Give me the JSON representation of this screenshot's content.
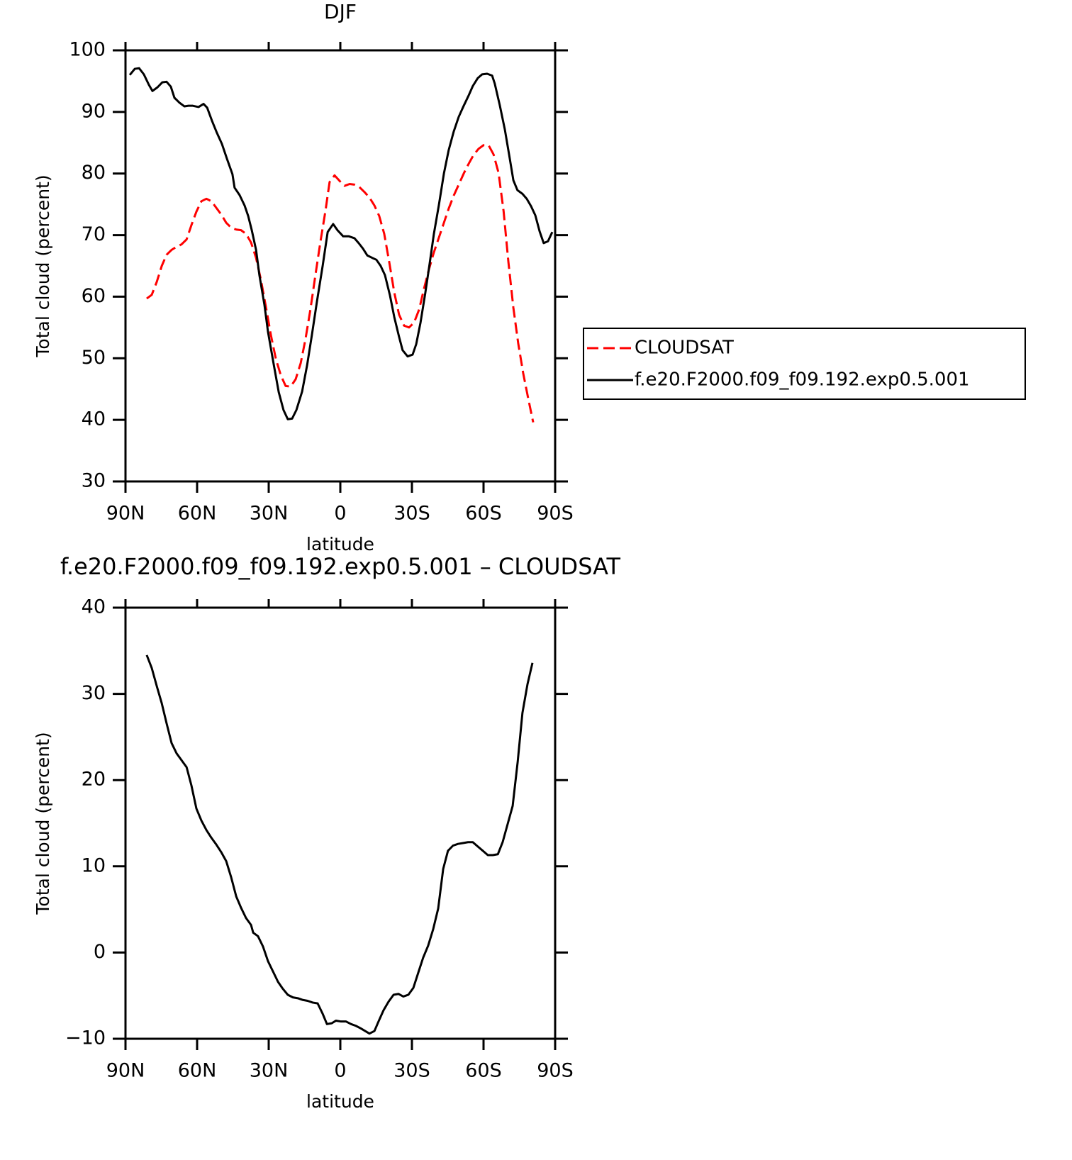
{
  "chart_data": [
    {
      "type": "line",
      "title": "DJF",
      "xlabel": "latitude",
      "ylabel": "Total cloud (percent)",
      "xlim": [
        90,
        -90
      ],
      "xticks": [
        {
          "value": 90,
          "label": "90N"
        },
        {
          "value": 60,
          "label": "60N"
        },
        {
          "value": 30,
          "label": "30N"
        },
        0,
        {
          "value": -30,
          "label": "30S"
        },
        {
          "value": -60,
          "label": "60S"
        },
        {
          "value": -90,
          "label": "90S"
        }
      ],
      "ylim": [
        30,
        100
      ],
      "yticks": [
        30,
        40,
        50,
        60,
        70,
        80,
        90,
        100
      ],
      "legend": "right",
      "series": [
        {
          "name": "CLOUDSAT",
          "color": "#ff0000",
          "dash": true,
          "x": [
            81.1,
            79.0,
            76.9,
            74.8,
            72.8,
            70.7,
            68.6,
            66.5,
            64.4,
            62.4,
            60.3,
            58.2,
            56.1,
            54.0,
            51.9,
            49.8,
            47.8,
            45.7,
            43.6,
            41.6,
            39.5,
            37.4,
            35.3,
            33.3,
            31.2,
            29.1,
            27.0,
            24.9,
            22.9,
            20.8,
            18.7,
            16.6,
            14.6,
            12.5,
            10.4,
            8.3,
            6.2,
            4.5,
            2.4,
            0.3,
            -1.8,
            -3.9,
            -5.9,
            -8.0,
            -10.1,
            -12.2,
            -14.3,
            -16.3,
            -18.4,
            -20.5,
            -22.6,
            -24.6,
            -26.7,
            -28.8,
            -30.9,
            -33.0,
            -35.0,
            -37.1,
            -39.2,
            -41.3,
            -43.4,
            -45.4,
            -47.5,
            -49.6,
            -51.7,
            -53.8,
            -55.8,
            -57.9,
            -60.0,
            -62.1,
            -64.2,
            -66.3,
            -68.4,
            -70.4,
            -72.5,
            -74.5,
            -76.6,
            -78.7,
            -80.8
          ],
          "values": [
            59.7,
            60.3,
            62.4,
            65.0,
            66.8,
            67.6,
            68.1,
            68.5,
            69.3,
            71.6,
            73.8,
            75.5,
            75.9,
            75.5,
            74.4,
            73.3,
            72.0,
            71.2,
            70.9,
            70.8,
            70.2,
            68.8,
            66.3,
            62.8,
            58.4,
            53.8,
            49.9,
            47.2,
            45.5,
            45.4,
            46.6,
            49.2,
            53.1,
            58.0,
            63.6,
            69.0,
            74.0,
            78.6,
            79.7,
            78.8,
            78.0,
            78.3,
            78.2,
            77.8,
            77.0,
            76.1,
            74.8,
            73.1,
            70.2,
            65.6,
            60.7,
            57.1,
            55.3,
            55.0,
            55.8,
            57.9,
            61.2,
            64.4,
            67.2,
            69.6,
            72.0,
            74.3,
            76.4,
            78.2,
            80.0,
            81.6,
            83.0,
            84.0,
            84.6,
            84.6,
            83.1,
            80.1,
            73.9,
            65.7,
            58.2,
            52.5,
            47.6,
            43.5,
            39.6
          ]
        },
        {
          "name": "f.e20.F2000.f09_f09.192.exp0.5.001",
          "color": "#000000",
          "dash": false,
          "x": [
            88.2,
            86.1,
            84.3,
            82.3,
            80.2,
            78.7,
            76.6,
            74.6,
            72.8,
            71.0,
            69.5,
            67.4,
            65.3,
            63.6,
            61.8,
            59.4,
            57.3,
            55.8,
            53.8,
            51.7,
            49.6,
            47.5,
            45.2,
            44.3,
            42.2,
            40.1,
            38.6,
            37.1,
            35.3,
            33.9,
            31.8,
            30.3,
            27.9,
            25.8,
            23.8,
            22.0,
            20.2,
            18.4,
            16.0,
            13.9,
            11.9,
            9.8,
            7.4,
            5.3,
            3.0,
            1.2,
            -1.2,
            -3.6,
            -5.9,
            -7.7,
            -9.5,
            -11.3,
            -13.4,
            -15.1,
            -16.9,
            -18.7,
            -20.8,
            -22.6,
            -24.6,
            -26.1,
            -28.2,
            -30.3,
            -31.8,
            -33.6,
            -35.6,
            -37.4,
            -39.2,
            -41.3,
            -43.4,
            -45.4,
            -47.5,
            -49.6,
            -51.7,
            -53.8,
            -55.5,
            -57.6,
            -59.4,
            -61.5,
            -63.6,
            -64.7,
            -66.8,
            -68.9,
            -70.7,
            -72.5,
            -74.2,
            -76.3,
            -78.1,
            -79.9,
            -81.7,
            -83.5,
            -85.2,
            -87.0,
            -88.8
          ],
          "values": [
            96.0,
            97.0,
            97.1,
            96.1,
            94.4,
            93.4,
            94.0,
            94.8,
            94.9,
            94.1,
            92.3,
            91.5,
            90.9,
            91.0,
            91.0,
            90.8,
            91.3,
            90.7,
            88.6,
            86.6,
            84.8,
            82.4,
            79.9,
            77.7,
            76.5,
            74.8,
            73.1,
            70.8,
            67.6,
            63.5,
            58.7,
            54.3,
            49.0,
            44.5,
            41.6,
            40.1,
            40.2,
            41.6,
            44.6,
            48.9,
            53.8,
            59.2,
            65.0,
            70.5,
            71.8,
            70.8,
            69.8,
            69.8,
            69.5,
            68.7,
            67.8,
            66.7,
            66.3,
            66.0,
            65.0,
            63.5,
            60.2,
            56.7,
            53.5,
            51.3,
            50.3,
            50.6,
            52.3,
            55.8,
            60.6,
            65.3,
            70.2,
            74.9,
            80.0,
            83.8,
            86.8,
            89.2,
            91.0,
            92.7,
            94.2,
            95.5,
            96.1,
            96.2,
            95.9,
            94.6,
            91.1,
            87.2,
            83.1,
            78.9,
            77.3,
            76.7,
            75.9,
            74.7,
            73.2,
            70.6,
            68.7,
            69.0,
            70.5
          ]
        }
      ]
    },
    {
      "type": "line",
      "title": "f.e20.F2000.f09_f09.192.exp0.5.001 – CLOUDSAT",
      "xlabel": "latitude",
      "ylabel": "Total cloud (percent)",
      "xlim": [
        90,
        -90
      ],
      "xticks": [
        {
          "value": 90,
          "label": "90N"
        },
        {
          "value": 60,
          "label": "60N"
        },
        {
          "value": 30,
          "label": "30N"
        },
        0,
        {
          "value": -30,
          "label": "30S"
        },
        {
          "value": -60,
          "label": "60S"
        },
        {
          "value": -90,
          "label": "90S"
        }
      ],
      "ylim": [
        -10,
        40
      ],
      "yticks": [
        {
          "value": -10,
          "label": "−10"
        },
        0,
        10,
        20,
        30,
        40
      ],
      "series": [
        {
          "color": "#000000",
          "dash": false,
          "x": [
            81.1,
            79.0,
            76.9,
            74.8,
            72.8,
            70.7,
            68.6,
            66.5,
            64.4,
            62.4,
            60.3,
            58.2,
            56.1,
            54.0,
            51.9,
            49.8,
            47.8,
            45.7,
            43.6,
            41.6,
            39.5,
            37.4,
            36.5,
            34.5,
            32.4,
            30.3,
            28.2,
            26.1,
            24.1,
            22.0,
            19.9,
            17.8,
            15.7,
            13.7,
            11.6,
            9.5,
            7.4,
            5.6,
            3.6,
            1.8,
            -0.3,
            -2.4,
            -4.5,
            -6.5,
            -8.6,
            -10.4,
            -12.2,
            -14.3,
            -16.0,
            -18.1,
            -20.2,
            -22.3,
            -24.4,
            -26.4,
            -28.5,
            -30.6,
            -32.7,
            -34.7,
            -36.8,
            -38.9,
            -41.0,
            -43.1,
            -45.1,
            -47.2,
            -49.3,
            -51.4,
            -53.5,
            -55.5,
            -57.6,
            -59.7,
            -61.8,
            -63.9,
            -66.0,
            -68.0,
            -70.1,
            -72.2,
            -74.3,
            -76.3,
            -78.4,
            -80.5
          ],
          "values": [
            34.5,
            33.0,
            30.9,
            28.9,
            26.6,
            24.3,
            23.1,
            22.3,
            21.5,
            19.4,
            16.7,
            15.3,
            14.2,
            13.3,
            12.5,
            11.6,
            10.6,
            8.7,
            6.5,
            5.2,
            4.0,
            3.2,
            2.3,
            1.9,
            0.7,
            -1.0,
            -2.2,
            -3.4,
            -4.2,
            -4.9,
            -5.2,
            -5.3,
            -5.5,
            -5.6,
            -5.8,
            -5.9,
            -7.1,
            -8.3,
            -8.2,
            -7.9,
            -8.0,
            -8.0,
            -8.3,
            -8.5,
            -8.8,
            -9.1,
            -9.4,
            -9.1,
            -8.0,
            -6.7,
            -5.7,
            -4.9,
            -4.8,
            -5.1,
            -4.9,
            -4.1,
            -2.3,
            -0.6,
            0.8,
            2.7,
            5.1,
            9.7,
            11.8,
            12.4,
            12.6,
            12.7,
            12.8,
            12.8,
            12.3,
            11.8,
            11.3,
            11.3,
            11.4,
            12.8,
            14.9,
            17.0,
            22.1,
            27.8,
            31.1,
            33.6
          ]
        }
      ]
    }
  ]
}
